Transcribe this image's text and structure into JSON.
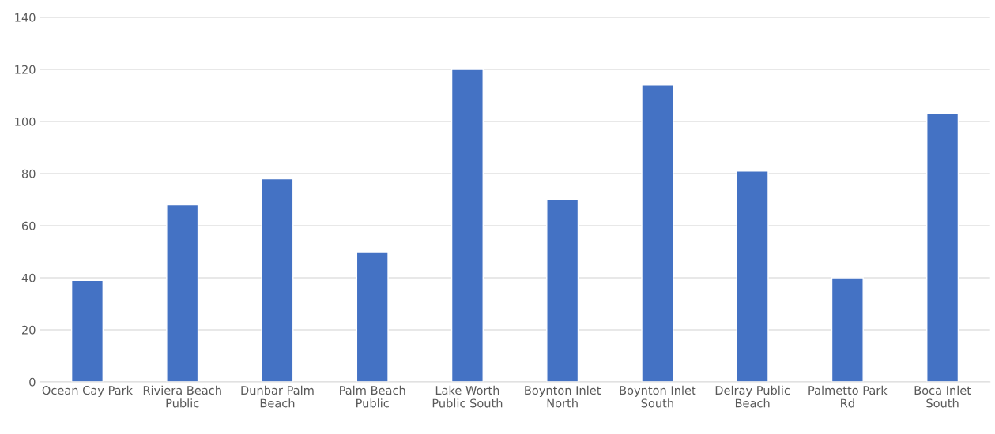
{
  "chart_data": {
    "type": "bar",
    "categories": [
      "Ocean Cay Park",
      "Riviera Beach Public",
      "Dunbar Palm Beach",
      "Palm Beach Public",
      "Lake Worth Public South",
      "Boynton Inlet North",
      "Boynton Inlet South",
      "Delray Public Beach",
      "Palmetto Park Rd",
      "Boca Inlet South"
    ],
    "values": [
      39,
      68,
      78,
      50,
      120,
      70,
      114,
      81,
      40,
      103
    ],
    "color": "#4472c4",
    "ylim": [
      0,
      140
    ],
    "yticks": [
      0,
      20,
      40,
      60,
      80,
      100,
      120,
      140
    ],
    "grid": "y",
    "legend": false
  }
}
